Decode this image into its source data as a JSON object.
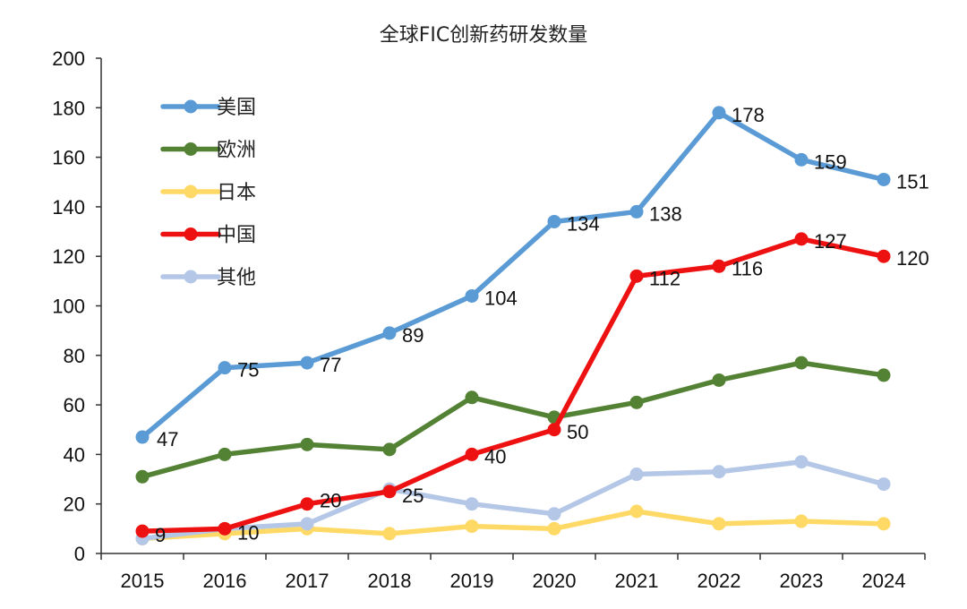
{
  "chart_data": {
    "type": "line",
    "title": "全球FIC创新药研发数量",
    "xlabel": "",
    "ylabel": "",
    "ylim": [
      0,
      200
    ],
    "yticks": [
      0,
      20,
      40,
      60,
      80,
      100,
      120,
      140,
      160,
      180,
      200
    ],
    "categories": [
      "2015",
      "2016",
      "2017",
      "2018",
      "2019",
      "2020",
      "2021",
      "2022",
      "2023",
      "2024"
    ],
    "grid": false,
    "legend_position": "top-left",
    "series": [
      {
        "name": "美国",
        "color": "#5b9bd5",
        "values": [
          47,
          75,
          77,
          89,
          104,
          134,
          138,
          178,
          159,
          151
        ],
        "labels": [
          "47",
          "75",
          "77",
          "89",
          "104",
          "134",
          "138",
          "178",
          "159",
          "151"
        ]
      },
      {
        "name": "欧洲",
        "color": "#548235",
        "values": [
          31,
          40,
          44,
          42,
          63,
          55,
          61,
          70,
          77,
          72
        ],
        "labels": []
      },
      {
        "name": "日本",
        "color": "#ffd966",
        "values": [
          6,
          8,
          10,
          8,
          11,
          10,
          17,
          12,
          13,
          12
        ],
        "labels": []
      },
      {
        "name": "中国",
        "color": "#ee1111",
        "values": [
          9,
          10,
          20,
          25,
          40,
          50,
          112,
          116,
          127,
          120
        ],
        "labels": [
          "9",
          "10",
          "20",
          "25",
          "40",
          "50",
          "112",
          "116",
          "127",
          "120"
        ]
      },
      {
        "name": "其他",
        "color": "#b4c7e7",
        "values": [
          6,
          10,
          12,
          26,
          20,
          16,
          32,
          33,
          37,
          28
        ],
        "labels": []
      }
    ]
  }
}
